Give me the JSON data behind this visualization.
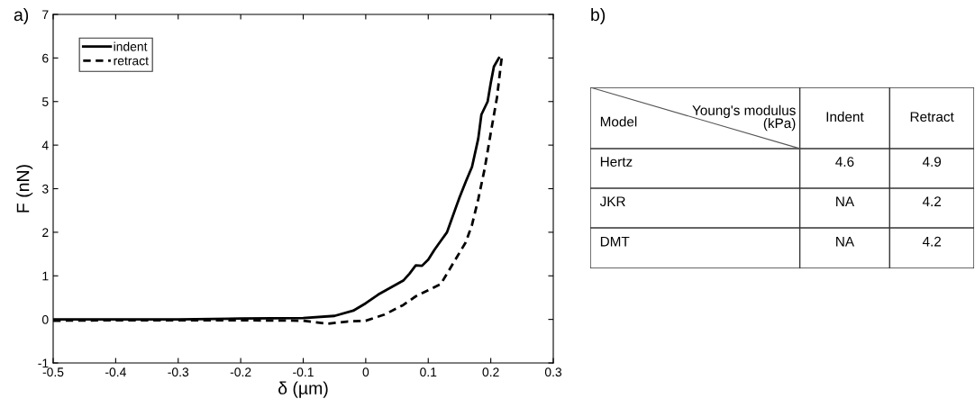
{
  "chart_data": [
    {
      "type": "line",
      "title": "a)",
      "xlabel": "δ (µm)",
      "ylabel": "F (nN)",
      "xlim": [
        -0.5,
        0.3
      ],
      "xticks": [
        -0.5,
        -0.4,
        -0.3,
        -0.2,
        -0.1,
        0,
        0.1,
        0.2,
        0.3
      ],
      "ylim": [
        -1,
        7
      ],
      "yticks": [
        -1,
        0,
        1,
        2,
        3,
        4,
        5,
        6,
        7
      ],
      "grid": false,
      "legend": "top left",
      "series": [
        {
          "name": "indent",
          "color": "#000000",
          "line_style": "solid",
          "x": [
            -0.5,
            -0.4,
            -0.3,
            -0.2,
            -0.1,
            -0.05,
            -0.02,
            0,
            0.02,
            0.04,
            0.06,
            0.07,
            0.08,
            0.09,
            0.1,
            0.11,
            0.12,
            0.13,
            0.14,
            0.15,
            0.16,
            0.17,
            0.18,
            0.185,
            0.195,
            0.2,
            0.205,
            0.213
          ],
          "values": [
            0,
            0,
            0,
            0.02,
            0.03,
            0.08,
            0.2,
            0.37,
            0.57,
            0.73,
            0.89,
            1.05,
            1.24,
            1.23,
            1.37,
            1.6,
            1.8,
            2.0,
            2.4,
            2.8,
            3.16,
            3.5,
            4.15,
            4.7,
            5.0,
            5.43,
            5.8,
            6.0
          ]
        },
        {
          "name": "retract",
          "color": "#000000",
          "line_style": "dashed",
          "x": [
            -0.5,
            -0.4,
            -0.3,
            -0.2,
            -0.1,
            -0.06,
            -0.03,
            0,
            0.03,
            0.06,
            0.08,
            0.1,
            0.12,
            0.14,
            0.16,
            0.17,
            0.18,
            0.19,
            0.2,
            0.21,
            0.218
          ],
          "values": [
            -0.03,
            -0.02,
            -0.02,
            -0.02,
            -0.03,
            -0.1,
            -0.05,
            -0.03,
            0.11,
            0.33,
            0.53,
            0.67,
            0.81,
            1.29,
            1.77,
            2.17,
            2.76,
            3.44,
            4.28,
            5.1,
            6.07
          ]
        }
      ]
    },
    {
      "type": "other",
      "title": "b)",
      "annotations": [
        "Young's modulus\n(kPa)",
        "Model",
        "Indent",
        "Retract",
        "Hertz",
        "4.6",
        "4.9",
        "JKR",
        "NA",
        "4.2",
        "DMT",
        "NA",
        "4.2"
      ]
    }
  ]
}
